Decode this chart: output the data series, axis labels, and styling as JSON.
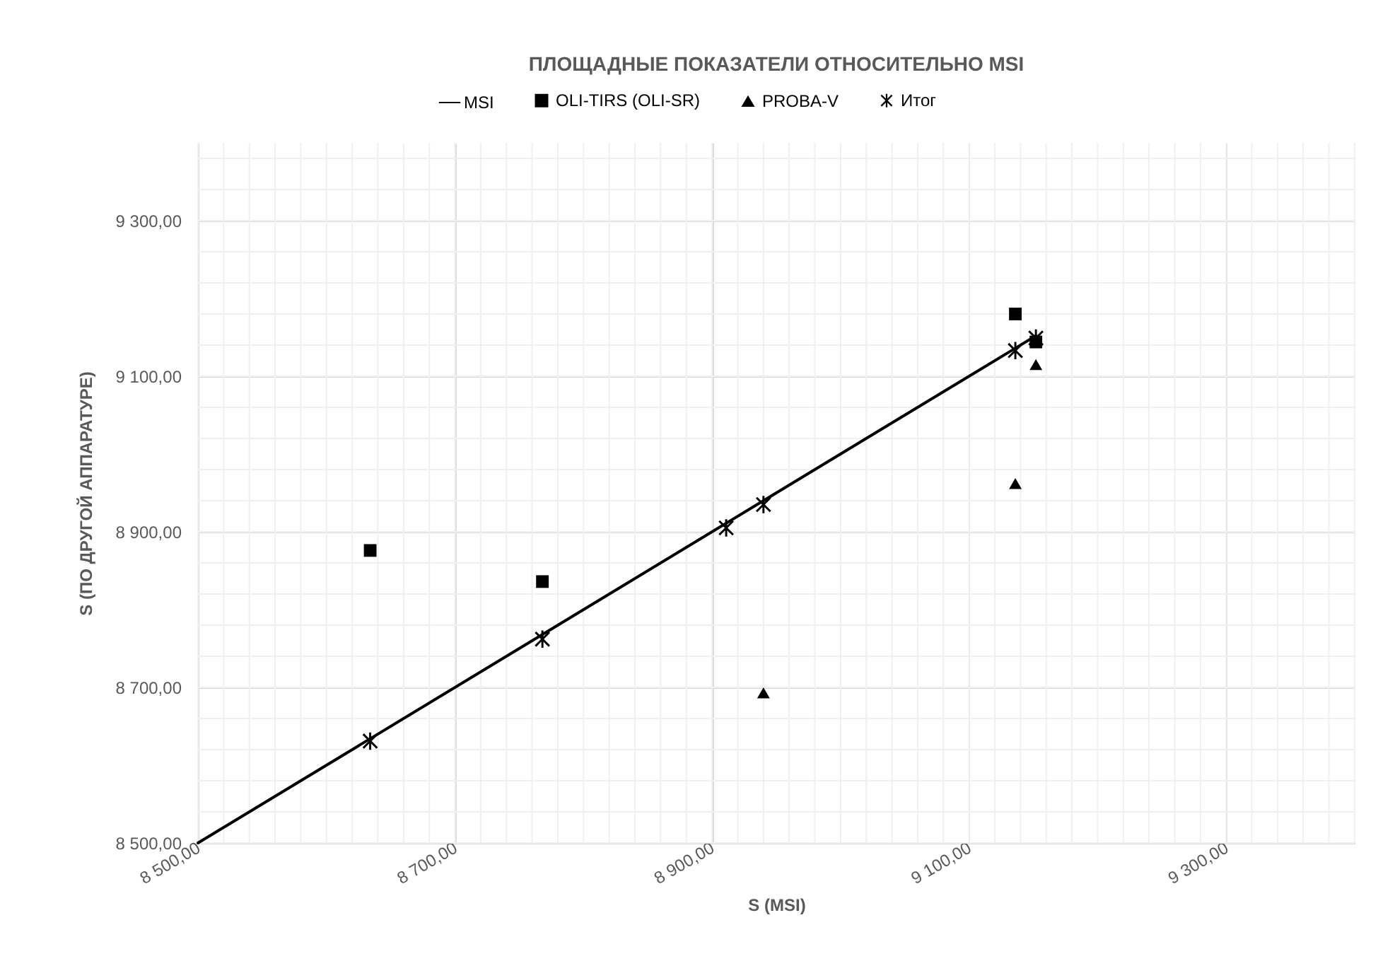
{
  "chart_data": {
    "type": "scatter",
    "title": "ПЛОЩАДНЫЕ ПОКАЗАТЕЛИ ОТНОСИТЕЛЬНО MSI",
    "xlabel": "S (MSI)",
    "ylabel": "S (ПО ДРУГОЙ АППАРАТУРЕ)",
    "xlim": [
      8500,
      9400
    ],
    "ylim": [
      8500,
      9400
    ],
    "xticks": [
      {
        "value": 8500,
        "label": "8 500,00"
      },
      {
        "value": 8700,
        "label": "8 700,00"
      },
      {
        "value": 8900,
        "label": "8 900,00"
      },
      {
        "value": 9100,
        "label": "9 100,00"
      },
      {
        "value": 9300,
        "label": "9 300,00"
      }
    ],
    "yticks": [
      {
        "value": 8500,
        "label": "8 500,00"
      },
      {
        "value": 8700,
        "label": "8 700,00"
      },
      {
        "value": 8900,
        "label": "8 900,00"
      },
      {
        "value": 9100,
        "label": "9 100,00"
      },
      {
        "value": 9300,
        "label": "9 300,00"
      }
    ],
    "grid": true,
    "legend": "top",
    "series": [
      {
        "name": "MSI",
        "type": "line",
        "color": "#000000",
        "marker": "none",
        "line_style": "solid",
        "x": [
          8500,
          8634,
          8768,
          8911,
          8940,
          9136,
          9152
        ],
        "values": [
          8500,
          8634,
          8768,
          8911,
          8940,
          9136,
          9152
        ]
      },
      {
        "name": "OLI-TIRS (OLI-SR)",
        "color": "#000000",
        "marker": "square",
        "x": [
          8634,
          8768,
          9136,
          9152
        ],
        "values": [
          8876,
          8836,
          9180,
          9144
        ]
      },
      {
        "name": "PROBA-V",
        "color": "#000000",
        "marker": "triangle",
        "x": [
          8940,
          9136,
          9152
        ],
        "values": [
          8693,
          8962,
          9115
        ]
      },
      {
        "name": "Итог",
        "color": "#000000",
        "marker": "cross",
        "x": [
          8634,
          8768,
          8911,
          8940,
          9136,
          9152
        ],
        "values": [
          8631,
          8762,
          8905,
          8935,
          9133,
          9149
        ]
      }
    ]
  }
}
